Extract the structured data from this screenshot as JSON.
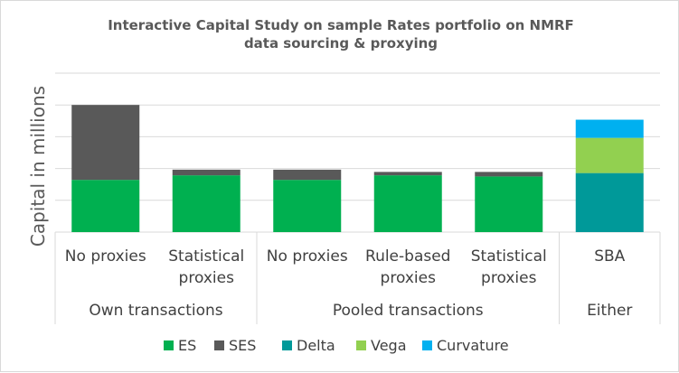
{
  "chart_data": {
    "type": "bar",
    "stacked": true,
    "title": "Interactive Capital Study on sample Rates portfolio on NMRF data sourcing & proxying",
    "title_lines": [
      "Interactive Capital Study on sample Rates portfolio on NMRF",
      "data sourcing & proxying"
    ],
    "ylabel": "Capital in millions",
    "xlabel": "",
    "ylim": [
      0,
      7.0
    ],
    "grid": true,
    "legend_position": "bottom",
    "groups": [
      {
        "label": "Own transactions",
        "span": 2
      },
      {
        "label": "Pooled transactions",
        "span": 3
      },
      {
        "label": "Either",
        "span": 1
      }
    ],
    "categories": [
      {
        "lines": [
          "No proxies"
        ]
      },
      {
        "lines": [
          "Statistical",
          "proxies"
        ]
      },
      {
        "lines": [
          "No proxies"
        ]
      },
      {
        "lines": [
          "Rule-based",
          "proxies"
        ]
      },
      {
        "lines": [
          "Statistical",
          "proxies"
        ]
      },
      {
        "lines": [
          "SBA"
        ]
      }
    ],
    "series": [
      {
        "name": "ES",
        "color": "#00b050",
        "values": [
          2.3,
          2.5,
          2.3,
          2.5,
          2.45,
          0
        ]
      },
      {
        "name": "SES",
        "color": "#595959",
        "values": [
          3.3,
          0.25,
          0.45,
          0.15,
          0.2,
          0
        ]
      },
      {
        "name": "Delta",
        "color": "#009999",
        "values": [
          0,
          0,
          0,
          0,
          0,
          2.6
        ]
      },
      {
        "name": "Vega",
        "color": "#92d050",
        "values": [
          0,
          0,
          0,
          0,
          0,
          1.55
        ]
      },
      {
        "name": "Curvature",
        "color": "#00b0f0",
        "values": [
          0,
          0,
          0,
          0,
          0,
          0.8
        ]
      }
    ]
  }
}
